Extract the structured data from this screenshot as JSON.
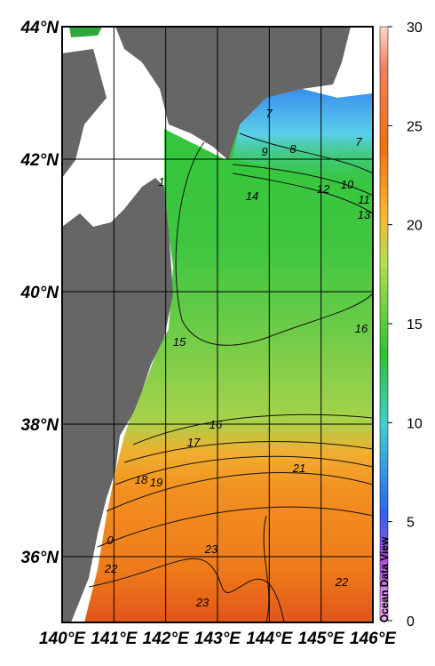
{
  "map": {
    "lat_labels": [
      "44°N",
      "42°N",
      "40°N",
      "38°N",
      "36°N"
    ],
    "lon_labels": [
      "140°E",
      "141°E",
      "142°E",
      "143°E",
      "144°E",
      "145°E",
      "146°E"
    ],
    "colorbar": {
      "range": [
        0,
        30
      ],
      "ticks": [
        0,
        5,
        10,
        15,
        20,
        25,
        30
      ]
    },
    "contour_labels": [
      "7",
      "7",
      "8",
      "9",
      "10",
      "11",
      "12",
      "13",
      "14",
      "1",
      "15",
      "16",
      "16",
      "17",
      "18",
      "19",
      "21",
      "0",
      "22",
      "23",
      "23",
      "22"
    ],
    "credit": "Ocean Data View"
  }
}
